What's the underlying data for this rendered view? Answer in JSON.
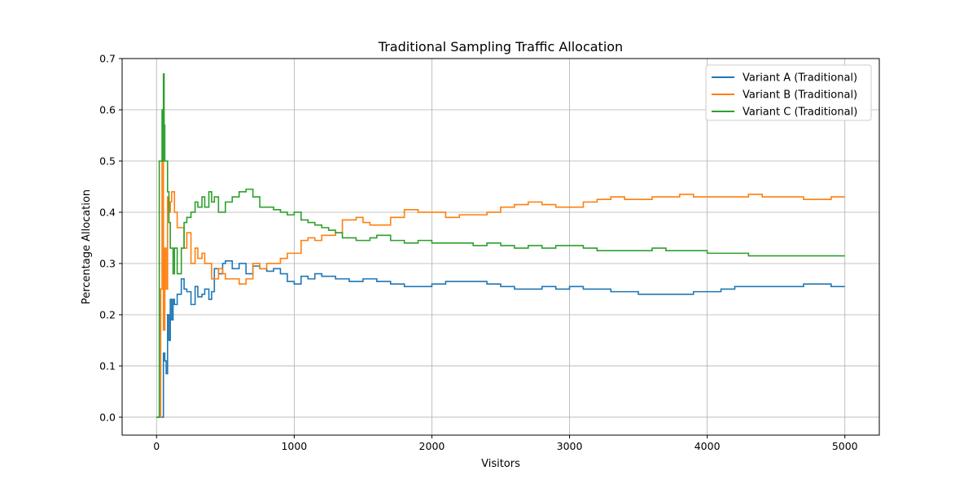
{
  "chart_data": {
    "type": "line",
    "title": "Traditional Sampling Traffic Allocation",
    "xlabel": "Visitors",
    "ylabel": "Percentage Allocation",
    "xlim": [
      -250,
      5250
    ],
    "ylim": [
      -0.035,
      0.7
    ],
    "xticks": [
      0,
      1000,
      2000,
      3000,
      4000,
      5000
    ],
    "yticks": [
      0.0,
      0.1,
      0.2,
      0.3,
      0.4,
      0.5,
      0.6,
      0.7
    ],
    "xtick_labels": [
      "0",
      "1000",
      "2000",
      "3000",
      "4000",
      "5000"
    ],
    "ytick_labels": [
      "0.0",
      "0.1",
      "0.2",
      "0.3",
      "0.4",
      "0.5",
      "0.6",
      "0.7"
    ],
    "grid": true,
    "legend_position": "top-right",
    "series": [
      {
        "name": "Variant A (Traditional)",
        "color": "#1f77b4",
        "x": [
          0,
          20,
          40,
          50,
          60,
          70,
          80,
          90,
          100,
          110,
          120,
          130,
          150,
          180,
          200,
          220,
          250,
          280,
          300,
          330,
          350,
          380,
          400,
          420,
          450,
          480,
          500,
          550,
          600,
          650,
          700,
          750,
          800,
          850,
          900,
          950,
          1000,
          1050,
          1100,
          1150,
          1200,
          1300,
          1400,
          1500,
          1600,
          1700,
          1800,
          1900,
          2000,
          2100,
          2200,
          2300,
          2400,
          2500,
          2600,
          2700,
          2800,
          2900,
          3000,
          3100,
          3200,
          3300,
          3400,
          3500,
          3600,
          3700,
          3800,
          3900,
          4000,
          4100,
          4200,
          4300,
          4400,
          4500,
          4600,
          4700,
          4800,
          4900,
          5000
        ],
        "y": [
          0.0,
          0.0,
          0.0,
          0.125,
          0.11,
          0.085,
          0.2,
          0.15,
          0.23,
          0.19,
          0.23,
          0.22,
          0.24,
          0.27,
          0.25,
          0.245,
          0.22,
          0.255,
          0.235,
          0.24,
          0.25,
          0.23,
          0.245,
          0.29,
          0.28,
          0.3,
          0.305,
          0.29,
          0.3,
          0.28,
          0.295,
          0.29,
          0.285,
          0.29,
          0.28,
          0.265,
          0.26,
          0.275,
          0.27,
          0.28,
          0.275,
          0.27,
          0.265,
          0.27,
          0.265,
          0.26,
          0.255,
          0.255,
          0.26,
          0.265,
          0.265,
          0.265,
          0.26,
          0.255,
          0.25,
          0.25,
          0.255,
          0.25,
          0.255,
          0.25,
          0.25,
          0.245,
          0.245,
          0.24,
          0.24,
          0.24,
          0.24,
          0.245,
          0.245,
          0.25,
          0.255,
          0.255,
          0.255,
          0.255,
          0.255,
          0.26,
          0.26,
          0.255,
          0.255
        ]
      },
      {
        "name": "Variant B (Traditional)",
        "color": "#ff7f0e",
        "x": [
          0,
          10,
          20,
          30,
          40,
          50,
          60,
          70,
          80,
          90,
          100,
          110,
          120,
          130,
          150,
          180,
          200,
          220,
          250,
          280,
          300,
          330,
          350,
          380,
          400,
          420,
          450,
          480,
          500,
          550,
          600,
          650,
          700,
          750,
          800,
          850,
          900,
          950,
          1000,
          1050,
          1100,
          1150,
          1200,
          1250,
          1300,
          1350,
          1400,
          1450,
          1500,
          1550,
          1600,
          1700,
          1800,
          1900,
          2000,
          2100,
          2200,
          2300,
          2400,
          2500,
          2600,
          2700,
          2800,
          2900,
          3000,
          3100,
          3200,
          3300,
          3400,
          3500,
          3600,
          3700,
          3800,
          3900,
          4000,
          4100,
          4200,
          4300,
          4400,
          4500,
          4600,
          4700,
          4800,
          4900,
          5000
        ],
        "y": [
          0.0,
          0.0,
          0.0,
          0.25,
          0.5,
          0.17,
          0.33,
          0.25,
          0.43,
          0.4,
          0.42,
          0.44,
          0.44,
          0.4,
          0.37,
          0.37,
          0.33,
          0.36,
          0.3,
          0.33,
          0.31,
          0.32,
          0.3,
          0.3,
          0.27,
          0.27,
          0.29,
          0.28,
          0.27,
          0.27,
          0.26,
          0.27,
          0.3,
          0.29,
          0.3,
          0.3,
          0.31,
          0.32,
          0.32,
          0.345,
          0.35,
          0.345,
          0.355,
          0.355,
          0.36,
          0.385,
          0.385,
          0.39,
          0.38,
          0.375,
          0.375,
          0.39,
          0.405,
          0.4,
          0.4,
          0.39,
          0.395,
          0.395,
          0.4,
          0.41,
          0.415,
          0.42,
          0.415,
          0.41,
          0.41,
          0.42,
          0.425,
          0.43,
          0.425,
          0.425,
          0.43,
          0.43,
          0.435,
          0.43,
          0.43,
          0.43,
          0.43,
          0.435,
          0.43,
          0.43,
          0.43,
          0.425,
          0.425,
          0.43,
          0.43
        ]
      },
      {
        "name": "Variant C (Traditional)",
        "color": "#2ca02c",
        "x": [
          0,
          10,
          20,
          30,
          40,
          45,
          50,
          55,
          60,
          70,
          80,
          90,
          100,
          110,
          120,
          130,
          150,
          180,
          200,
          220,
          250,
          280,
          300,
          330,
          350,
          380,
          400,
          420,
          450,
          480,
          500,
          550,
          600,
          650,
          700,
          750,
          800,
          850,
          900,
          950,
          1000,
          1050,
          1100,
          1150,
          1200,
          1250,
          1300,
          1350,
          1400,
          1450,
          1500,
          1550,
          1600,
          1700,
          1800,
          1900,
          2000,
          2100,
          2200,
          2300,
          2400,
          2500,
          2600,
          2700,
          2800,
          2900,
          3000,
          3100,
          3200,
          3300,
          3400,
          3500,
          3600,
          3700,
          3800,
          3900,
          4000,
          4100,
          4200,
          4300,
          4400,
          4500,
          4600,
          4700,
          4800,
          4900,
          5000
        ],
        "y": [
          0.0,
          0.0,
          0.5,
          0.5,
          0.6,
          0.5,
          0.67,
          0.57,
          0.5,
          0.5,
          0.44,
          0.38,
          0.33,
          0.33,
          0.28,
          0.33,
          0.28,
          0.33,
          0.38,
          0.39,
          0.4,
          0.42,
          0.41,
          0.43,
          0.41,
          0.44,
          0.42,
          0.43,
          0.4,
          0.4,
          0.42,
          0.43,
          0.44,
          0.445,
          0.43,
          0.41,
          0.41,
          0.405,
          0.4,
          0.395,
          0.4,
          0.385,
          0.38,
          0.375,
          0.37,
          0.365,
          0.36,
          0.35,
          0.35,
          0.345,
          0.345,
          0.35,
          0.355,
          0.345,
          0.34,
          0.345,
          0.34,
          0.34,
          0.34,
          0.335,
          0.34,
          0.335,
          0.33,
          0.335,
          0.33,
          0.335,
          0.335,
          0.33,
          0.325,
          0.325,
          0.325,
          0.325,
          0.33,
          0.325,
          0.325,
          0.325,
          0.32,
          0.32,
          0.32,
          0.315,
          0.315,
          0.315,
          0.315,
          0.315,
          0.315,
          0.315,
          0.315
        ]
      }
    ]
  }
}
